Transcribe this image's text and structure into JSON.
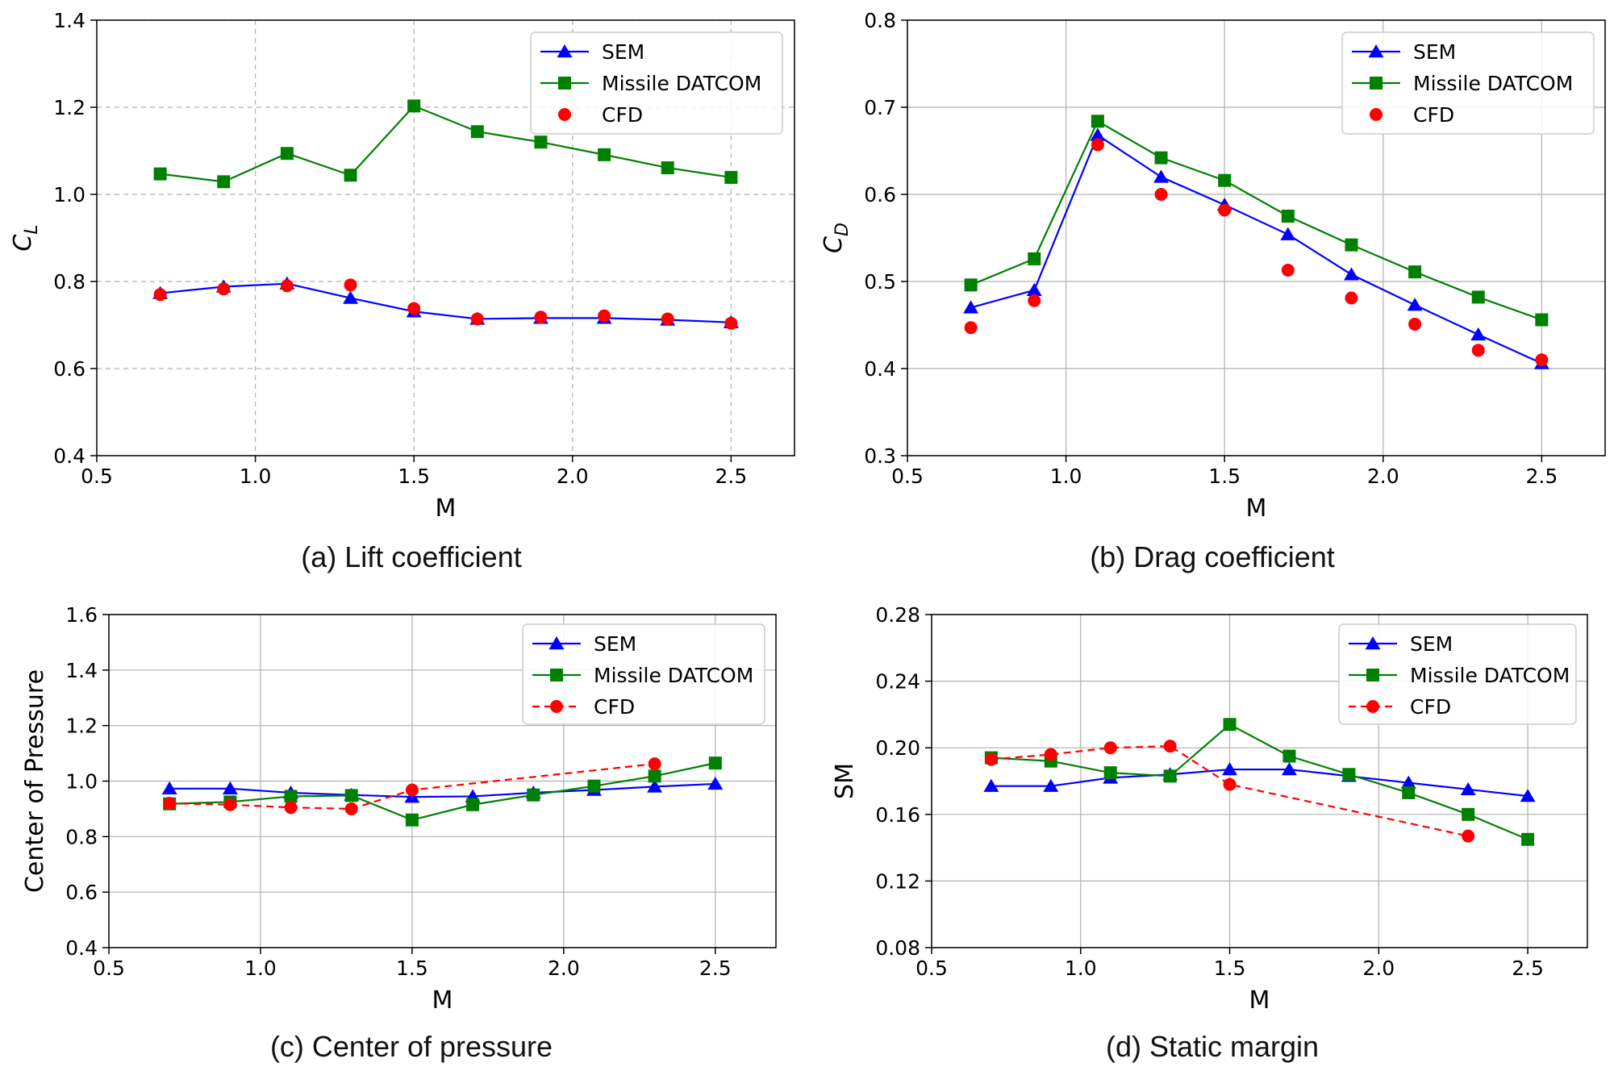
{
  "colors": {
    "sem": "#0000ff",
    "datcom": "#008000",
    "cfd": "#ff0000"
  },
  "chart_data": [
    {
      "id": "a",
      "type": "line",
      "caption": "(a) Lift coefficient",
      "xlabel": "M",
      "ylabel": "C",
      "ylabel_sub": "L",
      "xlim": [
        0.5,
        2.7
      ],
      "ylim": [
        0.4,
        1.4
      ],
      "xticks": [
        0.5,
        1.0,
        1.5,
        2.0,
        2.5
      ],
      "xtick_labels": [
        "0.5",
        "1.0",
        "1.5",
        "2.0",
        "2.5"
      ],
      "yticks": [
        0.4,
        0.6,
        0.8,
        1.0,
        1.2,
        1.4
      ],
      "ytick_labels": [
        "0.4",
        "0.6",
        "0.8",
        "1.0",
        "1.2",
        "1.4"
      ],
      "grid": "dashed",
      "legend": "top-right",
      "series": [
        {
          "name": "SEM",
          "style": "line-triangle",
          "color": "#0000ff",
          "x": [
            0.7,
            0.9,
            1.1,
            1.3,
            1.5,
            1.7,
            1.9,
            2.1,
            2.3,
            2.5
          ],
          "values": [
            0.773,
            0.788,
            0.795,
            0.762,
            0.731,
            0.714,
            0.716,
            0.716,
            0.712,
            0.706
          ]
        },
        {
          "name": "Missile DATCOM",
          "style": "line-square",
          "color": "#008000",
          "x": [
            0.7,
            0.9,
            1.1,
            1.3,
            1.5,
            1.7,
            1.9,
            2.1,
            2.3,
            2.5
          ],
          "values": [
            1.047,
            1.029,
            1.094,
            1.044,
            1.203,
            1.144,
            1.12,
            1.091,
            1.061,
            1.039
          ]
        },
        {
          "name": "CFD",
          "style": "marker-circle",
          "color": "#ff0000",
          "x": [
            0.7,
            0.9,
            1.1,
            1.3,
            1.5,
            1.7,
            1.9,
            2.1,
            2.3,
            2.5
          ],
          "values": [
            0.77,
            0.783,
            0.79,
            0.792,
            0.738,
            0.714,
            0.718,
            0.721,
            0.714,
            0.704
          ]
        }
      ]
    },
    {
      "id": "b",
      "type": "line",
      "caption": "(b) Drag coefficient",
      "xlabel": "M",
      "ylabel": "C",
      "ylabel_sub": "D",
      "xlim": [
        0.5,
        2.7
      ],
      "ylim": [
        0.3,
        0.8
      ],
      "xticks": [
        0.5,
        1.0,
        1.5,
        2.0,
        2.5
      ],
      "xtick_labels": [
        "0.5",
        "1.0",
        "1.5",
        "2.0",
        "2.5"
      ],
      "yticks": [
        0.3,
        0.4,
        0.5,
        0.6,
        0.7,
        0.8
      ],
      "ytick_labels": [
        "0.3",
        "0.4",
        "0.5",
        "0.6",
        "0.7",
        "0.8"
      ],
      "grid": "solid",
      "legend": "top-right",
      "series": [
        {
          "name": "SEM",
          "style": "line-triangle",
          "color": "#0000ff",
          "x": [
            0.7,
            0.9,
            1.1,
            1.3,
            1.5,
            1.7,
            1.9,
            2.1,
            2.3,
            2.5
          ],
          "values": [
            0.47,
            0.49,
            0.668,
            0.62,
            0.588,
            0.554,
            0.508,
            0.473,
            0.439,
            0.406
          ]
        },
        {
          "name": "Missile DATCOM",
          "style": "line-square",
          "color": "#008000",
          "x": [
            0.7,
            0.9,
            1.1,
            1.3,
            1.5,
            1.7,
            1.9,
            2.1,
            2.3,
            2.5
          ],
          "values": [
            0.496,
            0.526,
            0.684,
            0.642,
            0.616,
            0.575,
            0.542,
            0.511,
            0.482,
            0.456
          ]
        },
        {
          "name": "CFD",
          "style": "marker-circle",
          "color": "#ff0000",
          "x": [
            0.7,
            0.9,
            1.1,
            1.3,
            1.5,
            1.7,
            1.9,
            2.1,
            2.3,
            2.5
          ],
          "values": [
            0.447,
            0.478,
            0.657,
            0.6,
            0.582,
            0.513,
            0.481,
            0.451,
            0.421,
            0.41
          ]
        }
      ]
    },
    {
      "id": "c",
      "type": "line",
      "caption": "(c) Center of pressure",
      "xlabel": "M",
      "ylabel": "Center of Pressure",
      "ylabel_sub": "",
      "xlim": [
        0.5,
        2.7
      ],
      "ylim": [
        0.4,
        1.6
      ],
      "xticks": [
        0.5,
        1.0,
        1.5,
        2.0,
        2.5
      ],
      "xtick_labels": [
        "0.5",
        "1.0",
        "1.5",
        "2.0",
        "2.5"
      ],
      "yticks": [
        0.4,
        0.6,
        0.8,
        1.0,
        1.2,
        1.4,
        1.6
      ],
      "ytick_labels": [
        "0.4",
        "0.6",
        "0.8",
        "1.0",
        "1.2",
        "1.4",
        "1.6"
      ],
      "grid": "solid",
      "legend": "top-right",
      "series": [
        {
          "name": "SEM",
          "style": "line-triangle",
          "color": "#0000ff",
          "x": [
            0.7,
            0.9,
            1.1,
            1.3,
            1.5,
            1.7,
            1.9,
            2.1,
            2.3,
            2.5
          ],
          "values": [
            0.973,
            0.973,
            0.958,
            0.95,
            0.943,
            0.945,
            0.958,
            0.968,
            0.98,
            0.99
          ]
        },
        {
          "name": "Missile DATCOM",
          "style": "line-square",
          "color": "#008000",
          "x": [
            0.7,
            0.9,
            1.1,
            1.3,
            1.5,
            1.7,
            1.9,
            2.1,
            2.3,
            2.5
          ],
          "values": [
            0.918,
            0.925,
            0.945,
            0.948,
            0.86,
            0.915,
            0.95,
            0.982,
            1.018,
            1.065
          ]
        },
        {
          "name": "CFD",
          "style": "dashed-circle",
          "color": "#ff0000",
          "x": [
            0.7,
            0.9,
            1.1,
            1.3,
            1.5,
            2.3
          ],
          "values": [
            0.92,
            0.915,
            0.905,
            0.9,
            0.968,
            1.062
          ]
        }
      ]
    },
    {
      "id": "d",
      "type": "line",
      "caption": "(d) Static margin",
      "xlabel": "M",
      "ylabel": "SM",
      "ylabel_sub": "",
      "xlim": [
        0.5,
        2.7
      ],
      "ylim": [
        0.08,
        0.28
      ],
      "xticks": [
        0.5,
        1.0,
        1.5,
        2.0,
        2.5
      ],
      "xtick_labels": [
        "0.5",
        "1.0",
        "1.5",
        "2.0",
        "2.5"
      ],
      "yticks": [
        0.08,
        0.12,
        0.16,
        0.2,
        0.24,
        0.28
      ],
      "ytick_labels": [
        "0.08",
        "0.12",
        "0.16",
        "0.20",
        "0.24",
        "0.28"
      ],
      "grid": "solid",
      "legend": "top-right",
      "series": [
        {
          "name": "SEM",
          "style": "line-triangle",
          "color": "#0000ff",
          "x": [
            0.7,
            0.9,
            1.1,
            1.3,
            1.5,
            1.7,
            1.9,
            2.1,
            2.3,
            2.5
          ],
          "values": [
            0.177,
            0.177,
            0.182,
            0.184,
            0.187,
            0.187,
            0.183,
            0.179,
            0.175,
            0.171
          ]
        },
        {
          "name": "Missile DATCOM",
          "style": "line-square",
          "color": "#008000",
          "x": [
            0.7,
            0.9,
            1.1,
            1.3,
            1.5,
            1.7,
            1.9,
            2.1,
            2.3,
            2.5
          ],
          "values": [
            0.194,
            0.192,
            0.185,
            0.183,
            0.214,
            0.195,
            0.184,
            0.173,
            0.16,
            0.145
          ]
        },
        {
          "name": "CFD",
          "style": "dashed-circle",
          "color": "#ff0000",
          "x": [
            0.7,
            0.9,
            1.1,
            1.3,
            1.5,
            2.3
          ],
          "values": [
            0.193,
            0.196,
            0.2,
            0.201,
            0.178,
            0.147
          ]
        }
      ]
    }
  ]
}
